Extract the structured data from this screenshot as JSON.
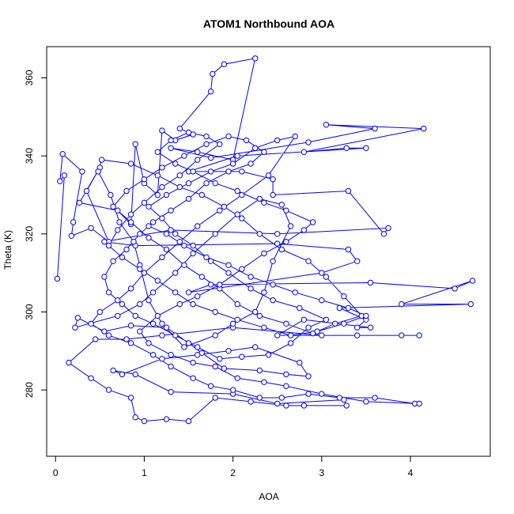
{
  "chart_data": {
    "type": "line",
    "title": "ATOM1 Northbound AOA",
    "xlabel": "AOA",
    "ylabel": "Theta (K)",
    "xlim": [
      -0.1,
      4.9
    ],
    "ylim": [
      263,
      368
    ],
    "xticks": [
      "0",
      "1",
      "2",
      "3",
      "4"
    ],
    "yticks": [
      "280",
      "300",
      "320",
      "340",
      "360"
    ],
    "grid": false,
    "legend": "none",
    "series": [
      {
        "color": "#0000ff",
        "marker": "open-circle",
        "points": [
          [
            0.02,
            308.5
          ],
          [
            0.1,
            335
          ],
          [
            0.05,
            333.5
          ],
          [
            0.08,
            340.5
          ],
          [
            0.3,
            336
          ],
          [
            0.2,
            323
          ],
          [
            0.18,
            319.5
          ],
          [
            0.4,
            321.5
          ],
          [
            0.6,
            318
          ],
          [
            0.35,
            331
          ],
          [
            0.5,
            337
          ],
          [
            0.27,
            328
          ],
          [
            0.7,
            326
          ],
          [
            0.85,
            322.5
          ],
          [
            0.9,
            343
          ],
          [
            1.0,
            333
          ],
          [
            1.15,
            330
          ],
          [
            1.2,
            346.5
          ],
          [
            1.35,
            344
          ],
          [
            1.55,
            345.5
          ],
          [
            1.4,
            347
          ],
          [
            1.75,
            356.5
          ],
          [
            1.77,
            361
          ],
          [
            1.9,
            363.5
          ],
          [
            2.25,
            365
          ],
          [
            2.0,
            339
          ],
          [
            1.6,
            341
          ],
          [
            1.3,
            342
          ],
          [
            1.75,
            339.5
          ],
          [
            2.85,
            343.5
          ],
          [
            3.6,
            347
          ],
          [
            3.05,
            348
          ],
          [
            4.15,
            347
          ],
          [
            2.8,
            341
          ],
          [
            3.28,
            342
          ],
          [
            3.5,
            342
          ],
          [
            2.05,
            340
          ],
          [
            1.5,
            336
          ],
          [
            2.1,
            336
          ],
          [
            2.45,
            334
          ],
          [
            2.45,
            330
          ],
          [
            3.3,
            331
          ],
          [
            3.7,
            320
          ],
          [
            3.75,
            321.5
          ],
          [
            2.5,
            320
          ],
          [
            1.3,
            321
          ],
          [
            0.55,
            318
          ],
          [
            0.9,
            317
          ],
          [
            2.5,
            317.5
          ],
          [
            3.3,
            316
          ],
          [
            3.4,
            313
          ],
          [
            3.0,
            310
          ],
          [
            1.5,
            305
          ],
          [
            1.75,
            307
          ],
          [
            3.55,
            307.5
          ],
          [
            4.5,
            306
          ],
          [
            4.7,
            308
          ],
          [
            3.9,
            302
          ],
          [
            4.68,
            302
          ],
          [
            3.2,
            301
          ],
          [
            3.5,
            298
          ],
          [
            3.4,
            296
          ],
          [
            3.55,
            296
          ],
          [
            2.8,
            298
          ],
          [
            2.5,
            294
          ],
          [
            3.4,
            294
          ],
          [
            3.9,
            294
          ],
          [
            4.1,
            294
          ],
          [
            3.0,
            294
          ],
          [
            2.0,
            296
          ],
          [
            1.2,
            294
          ],
          [
            0.8,
            293
          ],
          [
            0.45,
            293
          ],
          [
            0.15,
            287
          ],
          [
            0.4,
            283
          ],
          [
            0.6,
            280
          ],
          [
            0.85,
            278
          ],
          [
            0.9,
            273
          ],
          [
            1.0,
            272
          ],
          [
            1.25,
            272.5
          ],
          [
            1.5,
            272
          ],
          [
            1.8,
            278
          ],
          [
            2.2,
            277
          ],
          [
            2.6,
            276
          ],
          [
            2.8,
            276
          ],
          [
            3.28,
            276
          ],
          [
            3.25,
            277.5
          ],
          [
            2.5,
            276.5
          ],
          [
            2.0,
            279
          ],
          [
            1.3,
            279.5
          ],
          [
            0.9,
            284
          ],
          [
            0.65,
            285
          ],
          [
            0.75,
            284
          ],
          [
            1.2,
            288
          ],
          [
            1.6,
            289
          ],
          [
            1.95,
            290
          ],
          [
            2.25,
            291
          ],
          [
            2.75,
            287
          ],
          [
            2.85,
            283.5
          ],
          [
            2.6,
            284
          ],
          [
            2.3,
            285
          ],
          [
            1.9,
            285.5
          ],
          [
            1.65,
            289.5
          ],
          [
            1.5,
            292
          ],
          [
            1.25,
            296
          ],
          [
            0.85,
            296.5
          ],
          [
            0.55,
            295
          ],
          [
            0.25,
            298.5
          ],
          [
            0.22,
            296
          ],
          [
            0.7,
            299
          ],
          [
            0.95,
            302
          ],
          [
            1.1,
            305
          ],
          [
            1.35,
            310
          ],
          [
            1.55,
            315
          ],
          [
            1.8,
            320
          ],
          [
            2.05,
            325
          ],
          [
            2.3,
            329
          ],
          [
            2.55,
            327.5
          ],
          [
            2.65,
            322
          ],
          [
            2.45,
            313
          ],
          [
            2.35,
            305
          ],
          [
            2.25,
            300
          ],
          [
            2.0,
            297
          ],
          [
            1.8,
            294
          ],
          [
            1.45,
            291
          ],
          [
            1.2,
            297
          ],
          [
            1.05,
            303
          ],
          [
            0.95,
            312
          ],
          [
            0.88,
            318
          ],
          [
            0.72,
            323
          ],
          [
            0.62,
            330
          ],
          [
            0.48,
            336
          ],
          [
            0.52,
            339
          ],
          [
            0.85,
            338
          ],
          [
            1.15,
            335
          ],
          [
            1.4,
            332
          ],
          [
            1.65,
            330
          ],
          [
            1.9,
            327
          ],
          [
            2.1,
            324
          ],
          [
            2.3,
            320
          ],
          [
            2.55,
            316
          ],
          [
            2.85,
            313
          ],
          [
            3.05,
            309
          ],
          [
            3.25,
            304
          ],
          [
            3.45,
            299
          ],
          [
            3.15,
            297
          ],
          [
            2.9,
            294.5
          ],
          [
            2.6,
            297
          ],
          [
            2.3,
            299
          ],
          [
            2.05,
            302
          ],
          [
            1.85,
            306
          ],
          [
            1.65,
            309
          ],
          [
            1.45,
            312
          ],
          [
            1.25,
            316
          ],
          [
            1.05,
            319
          ],
          [
            0.85,
            323
          ],
          [
            0.65,
            327
          ],
          [
            0.8,
            331
          ],
          [
            1.0,
            334
          ],
          [
            1.2,
            337
          ],
          [
            1.45,
            340
          ],
          [
            1.7,
            343
          ],
          [
            1.95,
            345
          ],
          [
            2.15,
            344
          ],
          [
            2.35,
            341
          ],
          [
            2.2,
            338
          ],
          [
            1.95,
            336
          ],
          [
            1.7,
            333
          ],
          [
            1.5,
            329
          ],
          [
            1.3,
            326
          ],
          [
            1.1,
            323
          ],
          [
            0.95,
            320
          ],
          [
            0.8,
            316
          ],
          [
            0.65,
            313
          ],
          [
            0.55,
            309
          ],
          [
            0.6,
            305
          ],
          [
            0.75,
            302
          ],
          [
            0.9,
            299
          ],
          [
            1.1,
            297
          ],
          [
            1.35,
            294
          ],
          [
            1.6,
            291
          ],
          [
            1.85,
            288
          ],
          [
            2.1,
            288.5
          ],
          [
            2.4,
            289
          ],
          [
            2.65,
            292
          ],
          [
            2.85,
            296
          ],
          [
            3.05,
            298
          ],
          [
            2.75,
            301
          ],
          [
            2.45,
            303
          ],
          [
            2.2,
            306
          ],
          [
            1.95,
            310
          ],
          [
            1.75,
            313
          ],
          [
            1.55,
            317
          ],
          [
            1.35,
            320
          ],
          [
            1.2,
            324
          ],
          [
            1.05,
            327
          ],
          [
            1.25,
            330
          ],
          [
            1.5,
            333
          ],
          [
            1.75,
            336
          ],
          [
            2.0,
            338
          ],
          [
            2.25,
            342
          ],
          [
            2.5,
            344
          ],
          [
            2.7,
            345
          ],
          [
            2.4,
            335
          ],
          [
            2.1,
            330
          ],
          [
            1.85,
            326
          ],
          [
            1.6,
            322
          ],
          [
            1.4,
            318
          ],
          [
            1.2,
            314
          ],
          [
            1.0,
            310
          ],
          [
            0.85,
            306
          ],
          [
            0.7,
            303
          ],
          [
            0.5,
            300
          ],
          [
            0.4,
            297
          ],
          [
            0.6,
            294
          ],
          [
            0.85,
            292
          ],
          [
            1.1,
            289
          ],
          [
            1.3,
            286
          ],
          [
            1.55,
            283
          ],
          [
            1.75,
            281
          ],
          [
            2.0,
            280
          ],
          [
            2.3,
            278
          ],
          [
            2.55,
            278
          ],
          [
            2.85,
            279
          ],
          [
            3.2,
            278
          ],
          [
            3.6,
            278
          ],
          [
            4.05,
            276.5
          ],
          [
            4.1,
            276.5
          ],
          [
            3.5,
            277
          ],
          [
            3.0,
            279
          ],
          [
            2.6,
            281
          ],
          [
            2.35,
            282
          ],
          [
            2.05,
            283
          ],
          [
            1.8,
            286
          ],
          [
            1.55,
            287
          ],
          [
            1.3,
            289
          ],
          [
            1.05,
            292
          ],
          [
            0.95,
            295
          ],
          [
            1.15,
            299
          ],
          [
            1.4,
            302
          ],
          [
            1.6,
            304
          ],
          [
            1.85,
            307
          ],
          [
            2.1,
            311
          ],
          [
            2.35,
            315
          ],
          [
            2.6,
            318
          ],
          [
            2.8,
            321
          ],
          [
            2.9,
            323
          ],
          [
            2.6,
            326
          ],
          [
            2.35,
            328
          ],
          [
            2.05,
            331
          ],
          [
            1.8,
            333
          ],
          [
            1.55,
            336
          ],
          [
            1.35,
            338
          ],
          [
            1.15,
            341
          ],
          [
            1.3,
            344
          ],
          [
            1.5,
            346
          ],
          [
            1.7,
            345
          ],
          [
            1.85,
            343
          ],
          [
            1.6,
            339
          ],
          [
            1.4,
            335
          ],
          [
            1.2,
            332
          ],
          [
            1.0,
            328
          ],
          [
            0.85,
            325
          ],
          [
            0.7,
            321
          ],
          [
            0.6,
            317
          ],
          [
            0.75,
            314
          ],
          [
            0.95,
            311
          ],
          [
            1.15,
            308
          ],
          [
            1.35,
            305
          ],
          [
            1.55,
            302
          ],
          [
            1.8,
            300
          ],
          [
            2.05,
            298
          ],
          [
            2.35,
            296
          ],
          [
            2.65,
            294
          ],
          [
            2.95,
            295
          ],
          [
            3.25,
            297
          ],
          [
            3.5,
            299
          ],
          [
            3.3,
            301
          ],
          [
            3.0,
            303
          ],
          [
            2.7,
            305
          ],
          [
            2.45,
            307
          ],
          [
            2.2,
            309
          ],
          [
            1.95,
            312
          ],
          [
            1.7,
            314
          ],
          [
            1.45,
            317
          ],
          [
            1.25,
            320
          ],
          [
            1.05,
            322
          ]
        ]
      }
    ]
  }
}
